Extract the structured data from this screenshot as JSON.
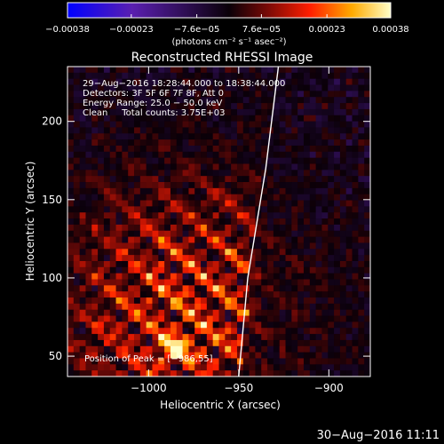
{
  "chart_data": {
    "type": "heatmap",
    "title": "Reconstructed RHESSI Image",
    "xlabel": "Heliocentric X (arcsec)",
    "ylabel": "Heliocentric Y (arcsec)",
    "xlim": [
      -1045,
      -877
    ],
    "ylim": [
      37,
      235
    ],
    "x_ticks": [
      -1000,
      -950,
      -900
    ],
    "x_tick_labels": [
      "−1000",
      "−950",
      "−900"
    ],
    "y_ticks": [
      50,
      100,
      150,
      200
    ],
    "y_tick_labels": [
      "50",
      "100",
      "150",
      "200"
    ],
    "colorbar": {
      "min": -0.00038,
      "max": 0.00038,
      "ticks": [
        -0.00038,
        -0.00023,
        -7.6e-05,
        7.6e-05,
        0.00023,
        0.00038
      ],
      "tick_labels": [
        "−0.00038",
        "−0.00023",
        "−7.6e−05",
        "7.6e−05",
        "0.00023",
        "0.00038"
      ],
      "unit_label": "(photons cm⁻² s⁻¹ asec⁻²)"
    },
    "annotations": [
      "29−Aug−2016 18:28:44.000 to 18:38:44.000",
      "Detectors: 3F 5F 6F 7F 8F, Att 0",
      "Energy Range: 25.0 − 50.0 keV",
      "Clean     Total counts: 3.75E+03"
    ],
    "peak_label": "Position of Peak = [−986,55]",
    "peak": [
      -986,
      55
    ],
    "limb": [
      [
        -950,
        37
      ],
      [
        -945,
        100
      ],
      [
        -935,
        170
      ],
      [
        -928,
        235
      ]
    ],
    "grid": false
  },
  "timestamp": "30−Aug−2016 11:11"
}
